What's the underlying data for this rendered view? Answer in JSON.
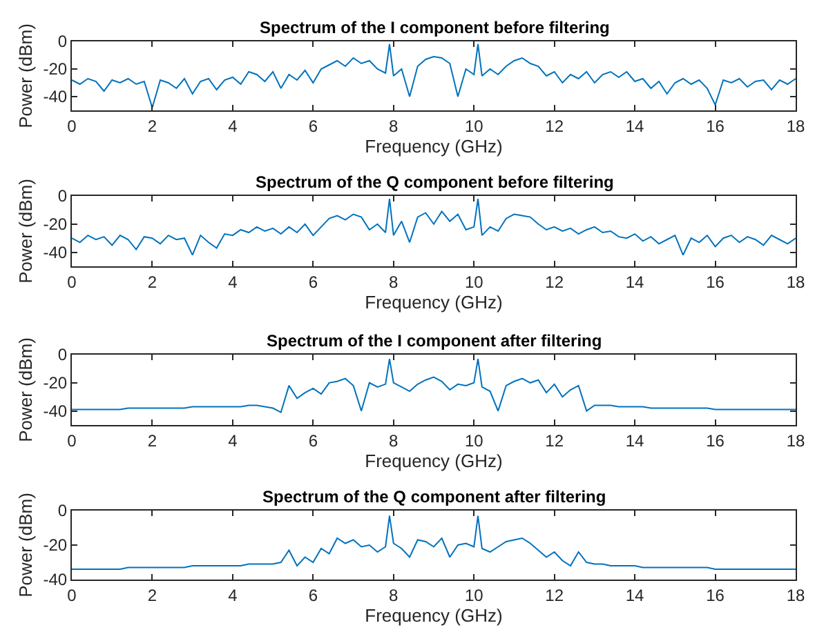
{
  "chart_data": [
    {
      "type": "line",
      "title": "Spectrum of the I component before filtering",
      "xlabel": "Frequency (GHz)",
      "ylabel": "Power (dBm)",
      "x": [
        0,
        0.2,
        0.4,
        0.6,
        0.8,
        1,
        1.2,
        1.4,
        1.6,
        1.8,
        2,
        2.2,
        2.4,
        2.6,
        2.8,
        3,
        3.2,
        3.4,
        3.6,
        3.8,
        4,
        4.2,
        4.4,
        4.6,
        4.8,
        5,
        5.2,
        5.4,
        5.6,
        5.8,
        6,
        6.2,
        6.4,
        6.6,
        6.8,
        7,
        7.2,
        7.4,
        7.6,
        7.8,
        7.9,
        8,
        8.2,
        8.4,
        8.6,
        8.8,
        9,
        9.2,
        9.4,
        9.6,
        9.8,
        10,
        10.1,
        10.2,
        10.4,
        10.6,
        10.8,
        11,
        11.2,
        11.4,
        11.6,
        11.8,
        12,
        12.2,
        12.4,
        12.6,
        12.8,
        13,
        13.2,
        13.4,
        13.6,
        13.8,
        14,
        14.2,
        14.4,
        14.6,
        14.8,
        15,
        15.2,
        15.4,
        15.6,
        15.8,
        16,
        16.2,
        16.4,
        16.6,
        16.8,
        17,
        17.2,
        17.4,
        17.6,
        17.8,
        18
      ],
      "series": [
        {
          "color": "#0072bd",
          "values": [
            -28,
            -31,
            -27,
            -29,
            -36,
            -28,
            -30,
            -27,
            -31,
            -29,
            -48,
            -28,
            -30,
            -34,
            -27,
            -38,
            -29,
            -27,
            -35,
            -28,
            -26,
            -31,
            -22,
            -24,
            -29,
            -22,
            -34,
            -24,
            -28,
            -21,
            -30,
            -20,
            -17,
            -14,
            -18,
            -12,
            -16,
            -14,
            -20,
            -23,
            -2,
            -25,
            -20,
            -40,
            -18,
            -13,
            -11,
            -12,
            -16,
            -40,
            -20,
            -24,
            -2,
            -25,
            -20,
            -24,
            -18,
            -14,
            -12,
            -16,
            -18,
            -25,
            -22,
            -30,
            -24,
            -27,
            -22,
            -30,
            -24,
            -22,
            -26,
            -22,
            -29,
            -27,
            -34,
            -29,
            -38,
            -30,
            -27,
            -31,
            -28,
            -34,
            -46,
            -28,
            -30,
            -27,
            -33,
            -29,
            -28,
            -35,
            -28,
            -31,
            -27
          ]
        }
      ],
      "xlim": [
        0,
        18
      ],
      "xticks": [
        0,
        2,
        4,
        6,
        8,
        10,
        12,
        14,
        16,
        18
      ],
      "ylim": [
        -50,
        0
      ],
      "yticks": [
        -40,
        -20,
        0
      ],
      "grid": false
    },
    {
      "type": "line",
      "title": "Spectrum of the Q component before filtering",
      "xlabel": "Frequency (GHz)",
      "ylabel": "Power (dBm)",
      "x": [
        0,
        0.2,
        0.4,
        0.6,
        0.8,
        1,
        1.2,
        1.4,
        1.6,
        1.8,
        2,
        2.2,
        2.4,
        2.6,
        2.8,
        3,
        3.2,
        3.4,
        3.6,
        3.8,
        4,
        4.2,
        4.4,
        4.6,
        4.8,
        5,
        5.2,
        5.4,
        5.6,
        5.8,
        6,
        6.2,
        6.4,
        6.6,
        6.8,
        7,
        7.2,
        7.4,
        7.6,
        7.8,
        7.9,
        8,
        8.2,
        8.4,
        8.6,
        8.8,
        9,
        9.2,
        9.4,
        9.6,
        9.8,
        10,
        10.1,
        10.2,
        10.4,
        10.6,
        10.8,
        11,
        11.2,
        11.4,
        11.6,
        11.8,
        12,
        12.2,
        12.4,
        12.6,
        12.8,
        13,
        13.2,
        13.4,
        13.6,
        13.8,
        14,
        14.2,
        14.4,
        14.6,
        14.8,
        15,
        15.2,
        15.4,
        15.6,
        15.8,
        16,
        16.2,
        16.4,
        16.6,
        16.8,
        17,
        17.2,
        17.4,
        17.6,
        17.8,
        18
      ],
      "series": [
        {
          "color": "#0072bd",
          "values": [
            -30,
            -33,
            -28,
            -31,
            -29,
            -35,
            -28,
            -31,
            -38,
            -29,
            -30,
            -34,
            -28,
            -31,
            -30,
            -42,
            -28,
            -33,
            -37,
            -27,
            -28,
            -24,
            -26,
            -22,
            -25,
            -23,
            -27,
            -22,
            -26,
            -20,
            -28,
            -22,
            -16,
            -14,
            -17,
            -13,
            -15,
            -24,
            -20,
            -26,
            -2,
            -28,
            -18,
            -33,
            -15,
            -12,
            -20,
            -11,
            -18,
            -13,
            -24,
            -22,
            -2,
            -28,
            -22,
            -25,
            -16,
            -13,
            -14,
            -15,
            -20,
            -24,
            -22,
            -25,
            -23,
            -27,
            -24,
            -22,
            -26,
            -25,
            -29,
            -30,
            -27,
            -32,
            -29,
            -34,
            -31,
            -28,
            -42,
            -30,
            -33,
            -28,
            -36,
            -30,
            -28,
            -33,
            -29,
            -31,
            -35,
            -28,
            -31,
            -34,
            -30
          ]
        }
      ],
      "xlim": [
        0,
        18
      ],
      "xticks": [
        0,
        2,
        4,
        6,
        8,
        10,
        12,
        14,
        16,
        18
      ],
      "ylim": [
        -50,
        0
      ],
      "yticks": [
        -40,
        -20,
        0
      ],
      "grid": false
    },
    {
      "type": "line",
      "title": "Spectrum of the I component after filtering",
      "xlabel": "Frequency (GHz)",
      "ylabel": "Power (dBm)",
      "x": [
        0,
        0.2,
        0.4,
        0.6,
        0.8,
        1,
        1.2,
        1.4,
        1.6,
        1.8,
        2,
        2.2,
        2.4,
        2.6,
        2.8,
        3,
        3.2,
        3.4,
        3.6,
        3.8,
        4,
        4.2,
        4.4,
        4.6,
        4.8,
        5,
        5.2,
        5.4,
        5.6,
        5.8,
        6,
        6.2,
        6.4,
        6.6,
        6.8,
        7,
        7.2,
        7.4,
        7.6,
        7.8,
        7.9,
        8,
        8.2,
        8.4,
        8.6,
        8.8,
        9,
        9.2,
        9.4,
        9.6,
        9.8,
        10,
        10.1,
        10.2,
        10.4,
        10.6,
        10.8,
        11,
        11.2,
        11.4,
        11.6,
        11.8,
        12,
        12.2,
        12.4,
        12.6,
        12.8,
        13,
        13.2,
        13.4,
        13.6,
        13.8,
        14,
        14.2,
        14.4,
        14.6,
        14.8,
        15,
        15.2,
        15.4,
        15.6,
        15.8,
        16,
        16.2,
        16.4,
        16.6,
        16.8,
        17,
        17.2,
        17.4,
        17.6,
        17.8,
        18
      ],
      "series": [
        {
          "color": "#0072bd",
          "values": [
            -39,
            -39,
            -39,
            -39,
            -39,
            -39,
            -39,
            -38,
            -38,
            -38,
            -38,
            -38,
            -38,
            -38,
            -38,
            -37,
            -37,
            -37,
            -37,
            -37,
            -37,
            -37,
            -36,
            -36,
            -37,
            -38,
            -41,
            -22,
            -31,
            -27,
            -24,
            -28,
            -20,
            -19,
            -17,
            -22,
            -40,
            -20,
            -23,
            -21,
            -3,
            -20,
            -23,
            -26,
            -21,
            -18,
            -16,
            -19,
            -25,
            -21,
            -22,
            -20,
            -3,
            -23,
            -26,
            -40,
            -22,
            -19,
            -17,
            -20,
            -18,
            -27,
            -21,
            -30,
            -25,
            -22,
            -40,
            -36,
            -36,
            -36,
            -37,
            -37,
            -37,
            -37,
            -38,
            -38,
            -38,
            -38,
            -38,
            -38,
            -38,
            -38,
            -39,
            -39,
            -39,
            -39,
            -39,
            -39,
            -39,
            -39,
            -39,
            -39,
            -39
          ]
        }
      ],
      "xlim": [
        0,
        18
      ],
      "xticks": [
        0,
        2,
        4,
        6,
        8,
        10,
        12,
        14,
        16,
        18
      ],
      "ylim": [
        -50,
        0
      ],
      "yticks": [
        -40,
        -20,
        0
      ],
      "grid": false
    },
    {
      "type": "line",
      "title": "Spectrum of the Q component after filtering",
      "xlabel": "Frequency (GHz)",
      "ylabel": "Power (dBm)",
      "x": [
        0,
        0.2,
        0.4,
        0.6,
        0.8,
        1,
        1.2,
        1.4,
        1.6,
        1.8,
        2,
        2.2,
        2.4,
        2.6,
        2.8,
        3,
        3.2,
        3.4,
        3.6,
        3.8,
        4,
        4.2,
        4.4,
        4.6,
        4.8,
        5,
        5.2,
        5.4,
        5.6,
        5.8,
        6,
        6.2,
        6.4,
        6.6,
        6.8,
        7,
        7.2,
        7.4,
        7.6,
        7.8,
        7.9,
        8,
        8.2,
        8.4,
        8.6,
        8.8,
        9,
        9.2,
        9.4,
        9.6,
        9.8,
        10,
        10.1,
        10.2,
        10.4,
        10.6,
        10.8,
        11,
        11.2,
        11.4,
        11.6,
        11.8,
        12,
        12.2,
        12.4,
        12.6,
        12.8,
        13,
        13.2,
        13.4,
        13.6,
        13.8,
        14,
        14.2,
        14.4,
        14.6,
        14.8,
        15,
        15.2,
        15.4,
        15.6,
        15.8,
        16,
        16.2,
        16.4,
        16.6,
        16.8,
        17,
        17.2,
        17.4,
        17.6,
        17.8,
        18
      ],
      "series": [
        {
          "color": "#0072bd",
          "values": [
            -34,
            -34,
            -34,
            -34,
            -34,
            -34,
            -34,
            -33,
            -33,
            -33,
            -33,
            -33,
            -33,
            -33,
            -33,
            -32,
            -32,
            -32,
            -32,
            -32,
            -32,
            -32,
            -31,
            -31,
            -31,
            -31,
            -30,
            -23,
            -32,
            -27,
            -30,
            -22,
            -25,
            -16,
            -19,
            -17,
            -21,
            -20,
            -24,
            -21,
            -3,
            -19,
            -22,
            -27,
            -17,
            -18,
            -21,
            -16,
            -27,
            -20,
            -19,
            -21,
            -3,
            -22,
            -24,
            -21,
            -18,
            -17,
            -16,
            -19,
            -23,
            -27,
            -24,
            -29,
            -32,
            -24,
            -30,
            -31,
            -31,
            -32,
            -32,
            -32,
            -32,
            -33,
            -33,
            -33,
            -33,
            -33,
            -33,
            -33,
            -33,
            -33,
            -34,
            -34,
            -34,
            -34,
            -34,
            -34,
            -34,
            -34,
            -34,
            -34,
            -34
          ]
        }
      ],
      "xlim": [
        0,
        18
      ],
      "xticks": [
        0,
        2,
        4,
        6,
        8,
        10,
        12,
        14,
        16,
        18
      ],
      "ylim": [
        -40,
        0
      ],
      "yticks": [
        -40,
        -20,
        0
      ],
      "grid": false
    }
  ]
}
